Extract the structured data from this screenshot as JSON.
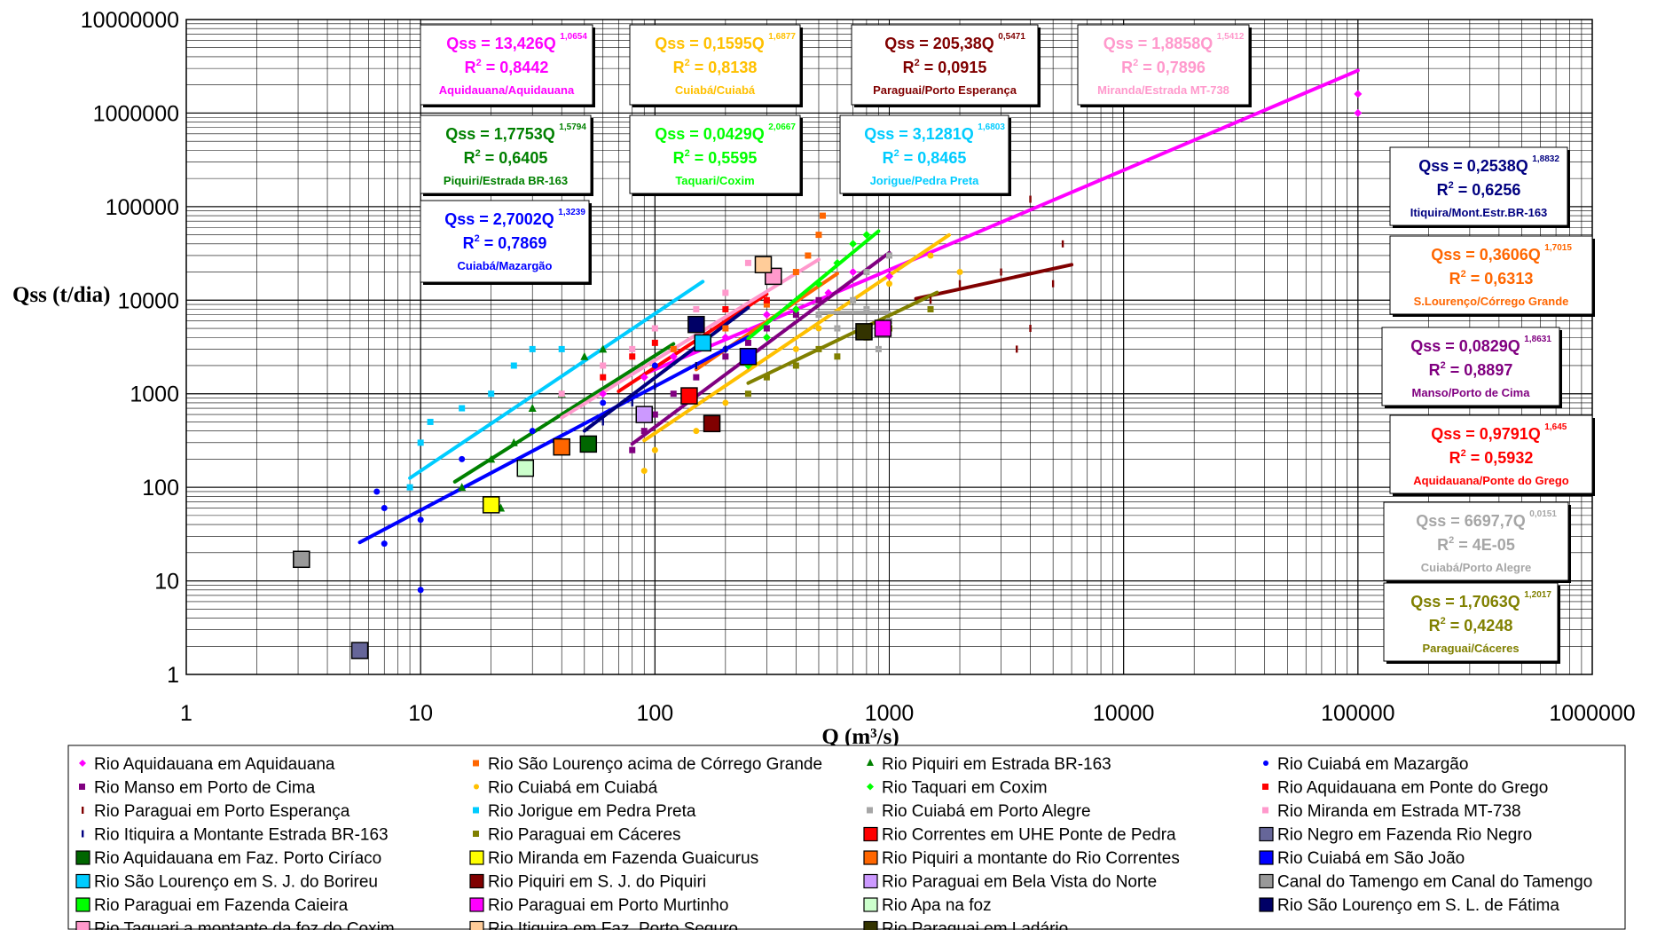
{
  "chart_data": {
    "type": "scatter",
    "title": "",
    "xlabel": "Q (m³/s)",
    "ylabel": "Qss (t/dia)",
    "x_scale": "log",
    "y_scale": "log",
    "xlim": [
      1,
      1000000
    ],
    "ylim": [
      1,
      10000000
    ],
    "grid": true,
    "x_ticks": [
      "1",
      "10",
      "100",
      "1000",
      "10000",
      "100000",
      "1000000"
    ],
    "y_ticks": [
      "1",
      "10",
      "100",
      "1000",
      "10000",
      "100000",
      "1000000",
      "10000000"
    ],
    "legend_position": "bottom",
    "equations": [
      {
        "id": "aquidauana",
        "coef": "Qss = 13,426Q",
        "exp": "1,0654",
        "r2_value": " = 0,8442",
        "station": "Aquidauana/Aquidauana",
        "color": "#ff00ff"
      },
      {
        "id": "cuiaba",
        "coef": "Qss = 0,1595Q",
        "exp": "1,6877",
        "r2_value": " = 0,8138",
        "station": "Cuiabá/Cuiabá",
        "color": "#ffc000"
      },
      {
        "id": "paraguai_pe",
        "coef": "Qss = 205,38Q",
        "exp": "0,5471",
        "r2_value": " = 0,0915",
        "station": "Paraguai/Porto Esperança",
        "color": "#800000"
      },
      {
        "id": "miranda",
        "coef": "Qss = 1,8858Q",
        "exp": "1,5412",
        "r2_value": " = 0,7896",
        "station": "Miranda/Estrada MT-738",
        "color": "#ff99cc"
      },
      {
        "id": "piquiri",
        "coef": "Qss = 1,7753Q",
        "exp": "1,5794",
        "r2_value": " = 0,6405",
        "station": "Piquiri/Estrada BR-163",
        "color": "#008000"
      },
      {
        "id": "taquari",
        "coef": "Qss = 0,0429Q",
        "exp": "2,0667",
        "r2_value": " = 0,5595",
        "station": "Taquari/Coxim",
        "color": "#00ff00"
      },
      {
        "id": "jorigue",
        "coef": "Qss = 3,1281Q",
        "exp": "1,6803",
        "r2_value": " = 0,8465",
        "station": "Jorigue/Pedra Preta",
        "color": "#00ccff"
      },
      {
        "id": "cuiaba_maz",
        "coef": "Qss = 2,7002Q",
        "exp": "1,3239",
        "r2_value": " = 0,7869",
        "station": "Cuiabá/Mazargão",
        "color": "#0000ff"
      },
      {
        "id": "itiquira",
        "coef": "Qss = 0,2538Q",
        "exp": "1,8832",
        "r2_value": " = 0,6256",
        "station": "Itiquira/Mont.Estr.BR-163",
        "color": "#000080"
      },
      {
        "id": "slourenco",
        "coef": "Qss = 0,3606Q",
        "exp": "1,7015",
        "r2_value": " = 0,6313",
        "station": "S.Lourenço/Córrego Grande",
        "color": "#ff6600"
      },
      {
        "id": "manso",
        "coef": "Qss = 0,0829Q",
        "exp": "1,8631",
        "r2_value": " = 0,8897",
        "station": "Manso/Porto de Cima",
        "color": "#800080"
      },
      {
        "id": "aquid_pg",
        "coef": "Qss = 0,9791Q",
        "exp": "1,645",
        "r2_value": " = 0,5932",
        "station": "Aquidauana/Ponte do Grego",
        "color": "#ff0000"
      },
      {
        "id": "cuiaba_pa",
        "coef": "Qss = 6697,7Q",
        "exp": "0,0151",
        "r2_value": " = 4E-05",
        "station": "Cuiabá/Porto Alegre",
        "color": "#a6a6a6"
      },
      {
        "id": "paraguai_c",
        "coef": "Qss = 1,7063Q",
        "exp": "1,2017",
        "r2_value": " = 0,4248",
        "station": "Paraguai/Cáceres",
        "color": "#808000"
      }
    ],
    "r2_label": "R",
    "r2_sup": "2",
    "series": [
      {
        "name": "Rio Aquidauana em Aquidauana",
        "color": "#ff00ff",
        "marker": "diamond",
        "points": [
          [
            60,
            1000
          ],
          [
            90,
            1500
          ],
          [
            120,
            2500
          ],
          [
            200,
            4000
          ],
          [
            300,
            7000
          ],
          [
            400,
            8000
          ],
          [
            550,
            12000
          ],
          [
            700,
            20000
          ],
          [
            1000,
            18000
          ],
          [
            100000,
            1600000
          ],
          [
            100000,
            1000000
          ]
        ],
        "fit": {
          "a": 13.426,
          "b": 1.0654,
          "x": [
            90,
            100000
          ]
        }
      },
      {
        "name": "Rio São Lourenço acima de Córrego Grande",
        "color": "#ff6600",
        "marker": "square",
        "points": [
          [
            120,
            3000
          ],
          [
            200,
            5000
          ],
          [
            300,
            9000
          ],
          [
            400,
            20000
          ],
          [
            500,
            50000
          ],
          [
            520,
            80000
          ],
          [
            450,
            30000
          ]
        ],
        "fit": {
          "a": 0.3606,
          "b": 1.7015,
          "x": [
            150,
            600
          ]
        }
      },
      {
        "name": "Rio Piquiri em Estrada BR-163",
        "color": "#008000",
        "marker": "triangle",
        "points": [
          [
            15,
            100
          ],
          [
            20,
            200
          ],
          [
            25,
            300
          ],
          [
            30,
            700
          ],
          [
            40,
            1000
          ],
          [
            50,
            2500
          ],
          [
            60,
            3000
          ],
          [
            22,
            60
          ]
        ],
        "fit": {
          "a": 1.7753,
          "b": 1.5794,
          "x": [
            14,
            120
          ]
        }
      },
      {
        "name": "Rio Cuiabá em Mazargão",
        "color": "#0000ff",
        "marker": "dot",
        "points": [
          [
            6.5,
            90
          ],
          [
            7,
            60
          ],
          [
            7,
            25
          ],
          [
            10,
            8
          ],
          [
            10,
            45
          ],
          [
            15,
            200
          ],
          [
            30,
            400
          ],
          [
            60,
            800
          ],
          [
            100,
            2000
          ],
          [
            200,
            3000
          ]
        ],
        "fit": {
          "a": 2.7002,
          "b": 1.3239,
          "x": [
            5.5,
            250
          ]
        }
      },
      {
        "name": "Rio Manso em Porto de Cima",
        "color": "#800080",
        "marker": "square",
        "points": [
          [
            80,
            250
          ],
          [
            90,
            400
          ],
          [
            100,
            600
          ],
          [
            120,
            1000
          ],
          [
            150,
            1500
          ],
          [
            200,
            2500
          ],
          [
            250,
            3500
          ],
          [
            300,
            5000
          ],
          [
            400,
            7000
          ],
          [
            500,
            10000
          ]
        ],
        "fit": {
          "a": 0.0829,
          "b": 1.8631,
          "x": [
            80,
            1000
          ]
        }
      },
      {
        "name": "Rio Cuiabá em Cuiabá",
        "color": "#ffc000",
        "marker": "dot",
        "points": [
          [
            90,
            150
          ],
          [
            100,
            250
          ],
          [
            150,
            400
          ],
          [
            200,
            800
          ],
          [
            300,
            1500
          ],
          [
            400,
            3000
          ],
          [
            500,
            5000
          ],
          [
            700,
            10000
          ],
          [
            1000,
            15000
          ],
          [
            1500,
            30000
          ],
          [
            2000,
            20000
          ]
        ],
        "fit": {
          "a": 0.1595,
          "b": 1.6877,
          "x": [
            90,
            1800
          ]
        }
      },
      {
        "name": "Rio Taquari em Coxim",
        "color": "#00ff00",
        "marker": "diamond",
        "points": [
          [
            250,
            2000
          ],
          [
            300,
            4000
          ],
          [
            400,
            8000
          ],
          [
            500,
            15000
          ],
          [
            600,
            25000
          ],
          [
            700,
            40000
          ],
          [
            800,
            50000
          ]
        ],
        "fit": {
          "a": 0.0429,
          "b": 2.0667,
          "x": [
            250,
            900
          ]
        }
      },
      {
        "name": "Rio Aquidauana em Ponte do Grego",
        "color": "#ff0000",
        "marker": "square",
        "points": [
          [
            60,
            1500
          ],
          [
            80,
            2500
          ],
          [
            100,
            3500
          ],
          [
            150,
            5000
          ],
          [
            200,
            8000
          ],
          [
            300,
            10000
          ]
        ],
        "fit": {
          "a": 0.9791,
          "b": 1.645,
          "x": [
            70,
            300
          ]
        }
      },
      {
        "name": "Rio Paraguai em Porto Esperança",
        "color": "#800000",
        "marker": "tick",
        "points": [
          [
            1500,
            10000
          ],
          [
            2000,
            15000
          ],
          [
            3000,
            20000
          ],
          [
            3500,
            3000
          ],
          [
            4000,
            120000
          ],
          [
            5000,
            15000
          ],
          [
            5500,
            40000
          ],
          [
            4000,
            5000
          ]
        ],
        "fit": {
          "a": 205.38,
          "b": 0.5471,
          "x": [
            1300,
            6000
          ]
        }
      },
      {
        "name": "Rio Jorigue em Pedra Preta",
        "color": "#00ccff",
        "marker": "square",
        "points": [
          [
            9,
            100
          ],
          [
            10,
            300
          ],
          [
            11,
            500
          ],
          [
            15,
            700
          ],
          [
            20,
            1000
          ],
          [
            25,
            2000
          ],
          [
            30,
            3000
          ],
          [
            40,
            3000
          ]
        ],
        "fit": {
          "a": 3.1281,
          "b": 1.6803,
          "x": [
            9,
            160
          ]
        }
      },
      {
        "name": "Rio Cuiabá em Porto Alegre",
        "color": "#a6a6a6",
        "marker": "square",
        "points": [
          [
            500,
            7000
          ],
          [
            600,
            5000
          ],
          [
            700,
            10000
          ],
          [
            800,
            8000
          ],
          [
            900,
            3000
          ],
          [
            1000,
            6000
          ],
          [
            1000,
            30000
          ],
          [
            800,
            20000
          ]
        ],
        "fit": {
          "a": 6697.7,
          "b": 0.0151,
          "x": [
            500,
            1000
          ]
        }
      },
      {
        "name": "Rio Miranda em Estrada MT-738",
        "color": "#ff99cc",
        "marker": "square",
        "points": [
          [
            40,
            1000
          ],
          [
            60,
            2000
          ],
          [
            80,
            3000
          ],
          [
            100,
            5000
          ],
          [
            150,
            8000
          ],
          [
            200,
            12000
          ],
          [
            250,
            25000
          ]
        ],
        "fit": {
          "a": 1.8858,
          "b": 1.5412,
          "x": [
            40,
            500
          ]
        }
      },
      {
        "name": "Rio Itiquira a Montante Estrada BR-163",
        "color": "#000080",
        "marker": "tick",
        "points": [
          [
            50,
            300
          ],
          [
            60,
            500
          ],
          [
            80,
            800
          ],
          [
            100,
            1200
          ],
          [
            150,
            2000
          ],
          [
            200,
            3000
          ]
        ],
        "fit": {
          "a": 0.2538,
          "b": 1.8832,
          "x": [
            50,
            250
          ]
        }
      },
      {
        "name": "Rio Paraguai em Cáceres",
        "color": "#808000",
        "marker": "square",
        "points": [
          [
            250,
            1000
          ],
          [
            300,
            1500
          ],
          [
            400,
            2000
          ],
          [
            500,
            3000
          ],
          [
            600,
            2500
          ],
          [
            800,
            4000
          ],
          [
            1000,
            5000
          ],
          [
            1500,
            8000
          ]
        ],
        "fit": {
          "a": 1.7063,
          "b": 1.2017,
          "x": [
            250,
            1600
          ]
        }
      },
      {
        "name": "Rio Correntes em UHE Ponte de Pedra",
        "color": "#ff0000",
        "marker": "bigsquare",
        "points": [
          [
            140,
            950
          ]
        ]
      },
      {
        "name": "Rio Negro em Fazenda Rio Negro",
        "color": "#666699",
        "marker": "bigsquare",
        "points": [
          [
            5.5,
            1.8
          ]
        ]
      },
      {
        "name": "Rio Aquidauana em Faz. Porto Ciríaco",
        "color": "#006600",
        "marker": "bigsquare",
        "points": [
          [
            52,
            290
          ]
        ]
      },
      {
        "name": "Rio Miranda em Fazenda Guaicurus",
        "color": "#ffff00",
        "marker": "bigsquare",
        "points": [
          [
            20,
            65
          ]
        ]
      },
      {
        "name": "Rio Piquiri a montante do Rio Correntes",
        "color": "#ff6600",
        "marker": "bigsquare",
        "points": [
          [
            40,
            270
          ]
        ]
      },
      {
        "name": "Rio Cuiabá em São João",
        "color": "#0000ff",
        "marker": "bigsquare",
        "points": [
          [
            250,
            2500
          ]
        ]
      },
      {
        "name": "Rio São Lourenço em S. J. do Borireu",
        "color": "#00ccff",
        "marker": "bigsquare",
        "points": [
          [
            160,
            3500
          ]
        ]
      },
      {
        "name": "Rio Piquiri em S. J. do Piquiri",
        "color": "#800000",
        "marker": "bigsquare",
        "points": [
          [
            175,
            480
          ]
        ]
      },
      {
        "name": "Rio Paraguai em Bela Vista do Norte",
        "color": "#cc99ff",
        "marker": "bigsquare",
        "points": [
          [
            90,
            600
          ]
        ]
      },
      {
        "name": "Canal do Tamengo em Canal do Tamengo",
        "color": "#999999",
        "marker": "bigsquare",
        "points": [
          [
            3.1,
            17
          ]
        ]
      },
      {
        "name": "Rio Paraguai em Fazenda Caieira",
        "color": "#00ff00",
        "marker": "bigsquare",
        "points": []
      },
      {
        "name": "Rio Paraguai em Porto Murtinho",
        "color": "#ff00ff",
        "marker": "bigsquare",
        "points": [
          [
            940,
            5000
          ]
        ]
      },
      {
        "name": "Rio Apa na foz",
        "color": "#ccffcc",
        "marker": "bigsquare",
        "points": [
          [
            28,
            160
          ]
        ]
      },
      {
        "name": "Rio São Lourenço em S. L. de Fátima",
        "color": "#000066",
        "marker": "bigsquare",
        "points": [
          [
            150,
            5500
          ]
        ]
      },
      {
        "name": "Rio Taquari a montante da foz do Coxim",
        "color": "#ff99cc",
        "marker": "bigsquare",
        "points": [
          [
            320,
            18000
          ]
        ]
      },
      {
        "name": "Rio Itiquira em Faz. Porto Seguro",
        "color": "#ffcc99",
        "marker": "bigsquare",
        "points": [
          [
            290,
            24000
          ]
        ]
      },
      {
        "name": "Rio Paraguai em Ladário",
        "color": "#333300",
        "marker": "bigsquare",
        "points": [
          [
            780,
            4600
          ]
        ]
      }
    ]
  }
}
